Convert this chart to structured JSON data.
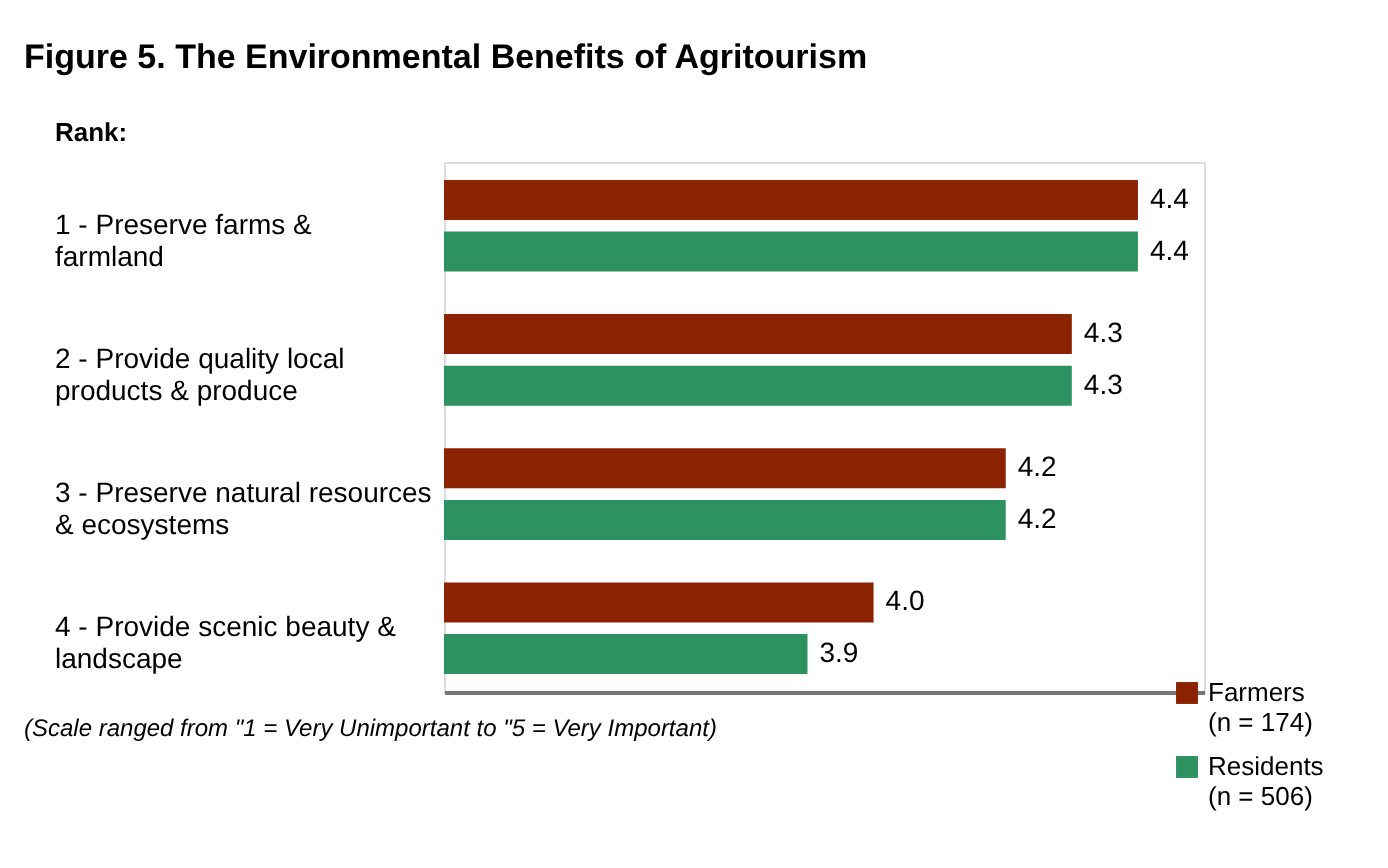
{
  "chart_data": {
    "type": "bar",
    "orientation": "horizontal",
    "title": "Figure 5. The Environmental Benefits of Agritourism",
    "ylabel": "Rank:",
    "categories": [
      "1 - Preserve farms &\n     farmland",
      "2 - Provide quality local\n     products & produce",
      "3 - Preserve natural resources\n     & ecosystems",
      "4 - Provide scenic beauty &\n     landscape"
    ],
    "series": [
      {
        "name": "Farmers\n(n = 174)",
        "color": "#8b2200",
        "values": [
          4.4,
          4.3,
          4.2,
          4.0
        ],
        "value_labels": [
          "4.4",
          "4.3",
          "4.2",
          "4.0"
        ]
      },
      {
        "name": "Residents\n(n = 506)",
        "color": "#2e9160",
        "values": [
          4.4,
          4.3,
          4.2,
          3.9
        ],
        "value_labels": [
          "4.4",
          "4.3",
          "4.2",
          "3.9"
        ]
      }
    ],
    "xlim": [
      3.35,
      4.5
    ],
    "legend": "bottom right",
    "grid": false,
    "tick_labels": "y",
    "annotations": [
      "(Scale ranged from  \"1 = Very Unimportant to \"5 = Very Important)"
    ]
  }
}
